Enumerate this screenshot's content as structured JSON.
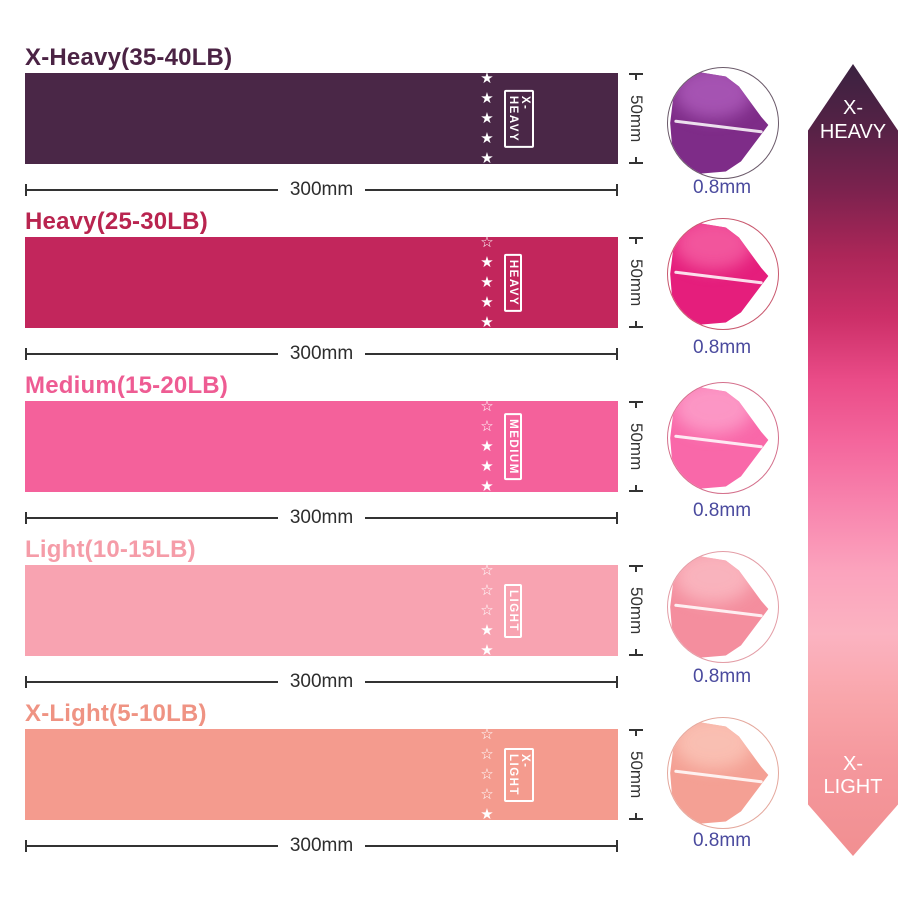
{
  "bands": [
    {
      "title": "X-Heavy(35-40LB)",
      "label": "X-HEAVY",
      "stars": "★★★★★",
      "length": "300mm",
      "width": "50mm",
      "thickness": "0.8mm",
      "colors": {
        "title": "#4b2344",
        "band": "#4a2747",
        "roll": "#7e2c88",
        "roll_light": "#aa58b7",
        "circle_border": "#6b5a6a"
      }
    },
    {
      "title": "Heavy(25-30LB)",
      "label": "HEAVY",
      "stars": "☆★★★★",
      "length": "300mm",
      "width": "50mm",
      "thickness": "0.8mm",
      "colors": {
        "title": "#b9244f",
        "band": "#c2265c",
        "roll": "#e51e7c",
        "roll_light": "#f35ba0",
        "circle_border": "#c9586e"
      }
    },
    {
      "title": "Medium(15-20LB)",
      "label": "MEDIUM",
      "stars": "☆☆★★★",
      "length": "300mm",
      "width": "50mm",
      "thickness": "0.8mm",
      "colors": {
        "title": "#ee5c93",
        "band": "#f4619b",
        "roll": "#f968a9",
        "roll_light": "#fc9cc8",
        "circle_border": "#d4708c"
      }
    },
    {
      "title": "Light(10-15LB)",
      "label": "LIGHT",
      "stars": "☆☆☆★★",
      "length": "300mm",
      "width": "50mm",
      "thickness": "0.8mm",
      "colors": {
        "title": "#f59ca8",
        "band": "#f8a3b1",
        "roll": "#f48e9e",
        "roll_light": "#fab7c0",
        "circle_border": "#e39da6"
      }
    },
    {
      "title": "X-Light(5-10LB)",
      "label": "X-LIGHT",
      "stars": "☆☆☆☆★",
      "length": "300mm",
      "width": "50mm",
      "thickness": "0.8mm",
      "colors": {
        "title": "#ef9383",
        "band": "#f49b8e",
        "roll": "#f4a094",
        "roll_light": "#fac2b5",
        "circle_border": "#e4a89d"
      }
    }
  ],
  "arrow": {
    "top_line1": "X-",
    "top_line2": "HEAVY",
    "bottom_line1": "X-",
    "bottom_line2": "LIGHT",
    "gradient": "linear-gradient(180deg,#3a2240 0%,#552246 8%,#7c224e 16%,#ab2658 24%,#cc2f68 32%,#ea4c88 40%,#f4679d 48%,#f885ae 56%,#fba3bd 64%,#fbb3c1 72%,#f9a6ab 80%,#f5989d 88%,#f18f91 100%)"
  },
  "thickness_color": "#4a4a9e"
}
